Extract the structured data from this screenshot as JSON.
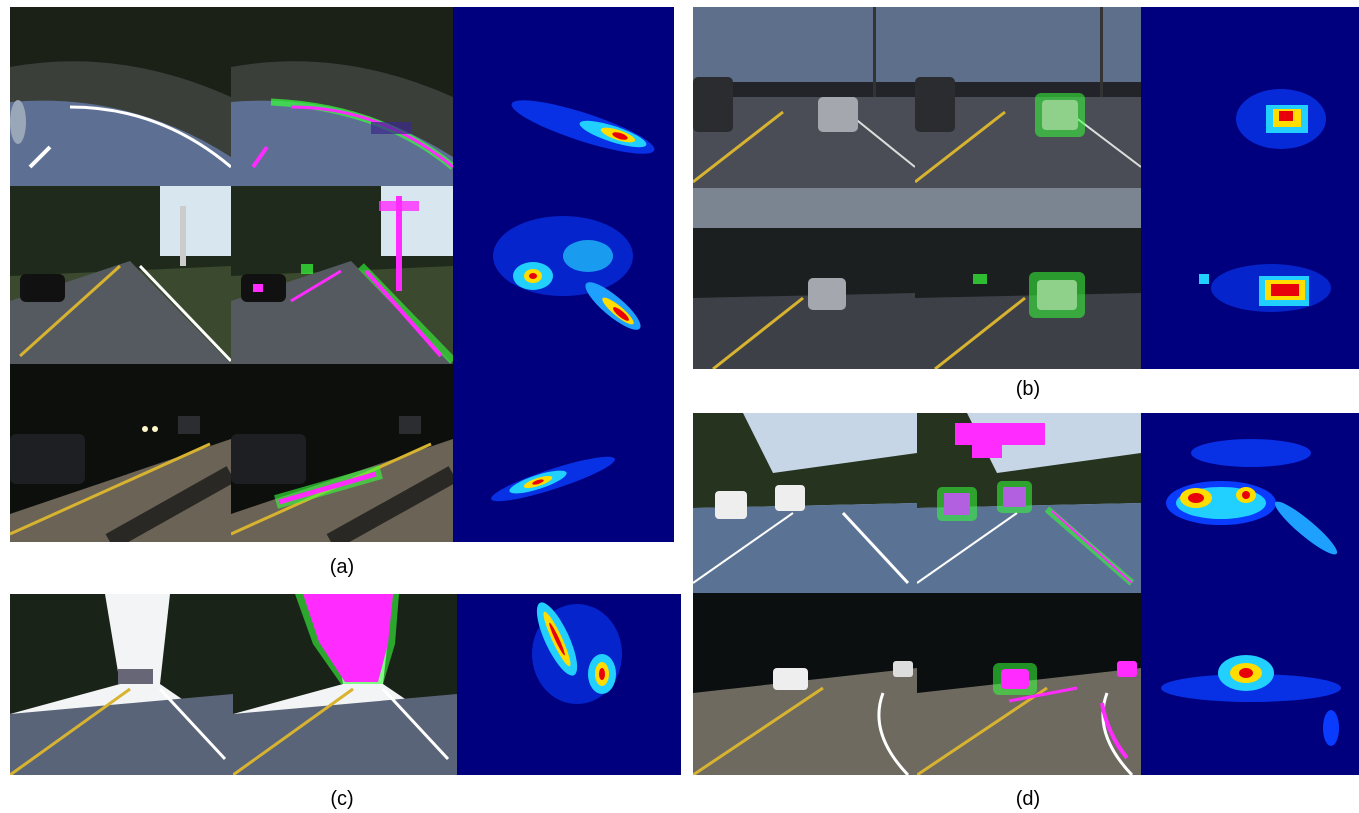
{
  "figure": {
    "panels": [
      {
        "id": "a",
        "caption": "(a)",
        "rows": 3
      },
      {
        "id": "b",
        "caption": "(b)",
        "rows": 2
      },
      {
        "id": "c",
        "caption": "(c)",
        "rows": 1
      },
      {
        "id": "d",
        "caption": "(d)",
        "rows": 2
      }
    ]
  },
  "colors": {
    "heatmap_bg": "#00007f",
    "overlay_green": "#36ff3a",
    "overlay_magenta": "#ff2bff",
    "asphalt": "#4a5568",
    "sky": "#b8c6d8",
    "trees": "#1e2a1c"
  }
}
